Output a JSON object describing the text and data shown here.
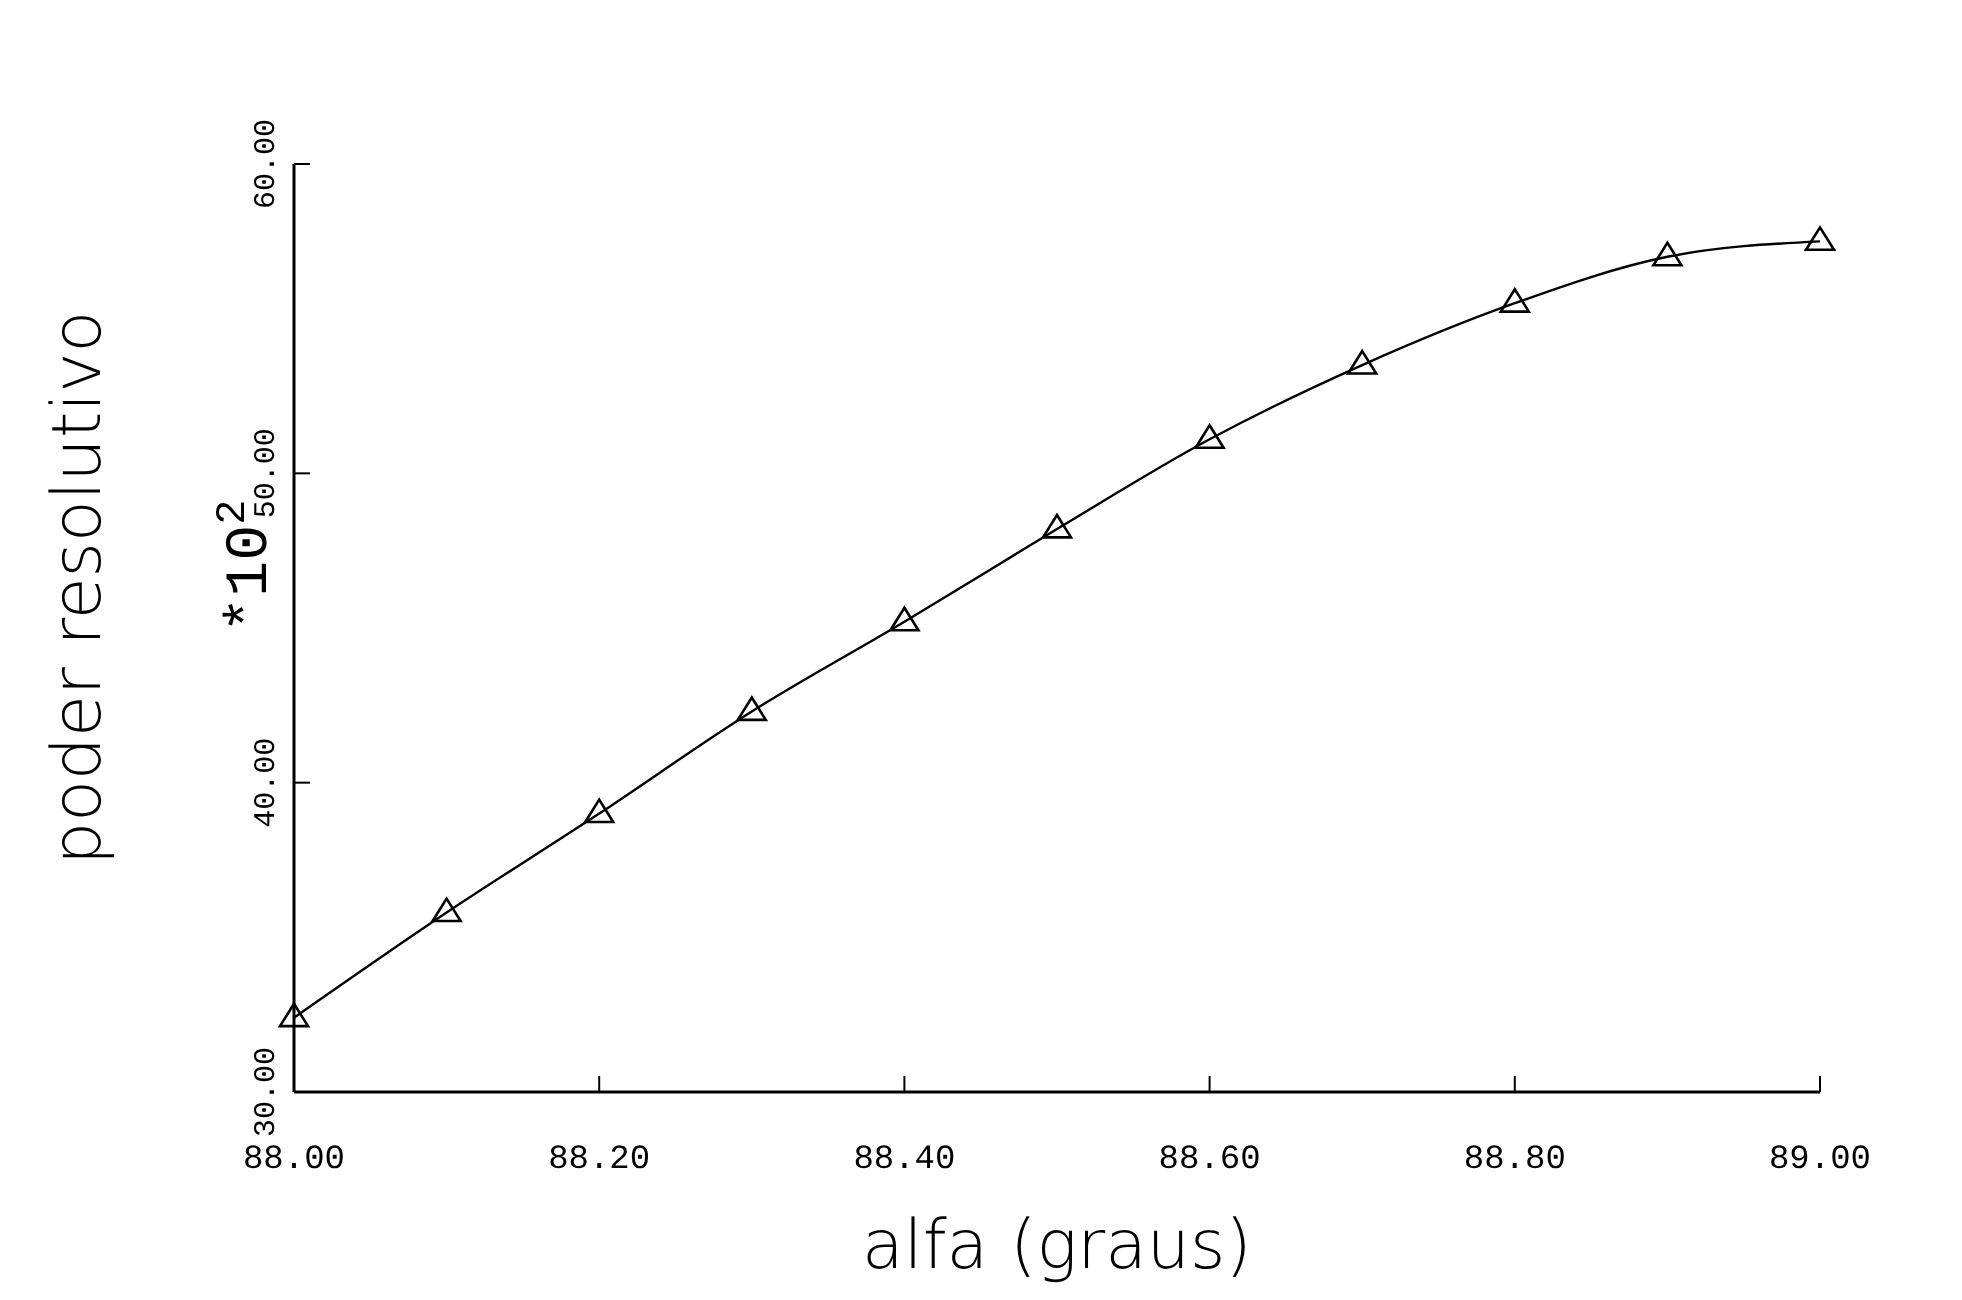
{
  "chart_data": {
    "type": "line",
    "xlabel": "alfa (graus)",
    "ylabel": "poder resolutivo",
    "annotations": [
      "*10$^{2}$"
    ],
    "x": [
      88.0,
      88.1,
      88.2,
      88.3,
      88.4,
      88.5,
      88.6,
      88.7,
      88.8,
      88.9,
      89.0
    ],
    "series": [
      {
        "color": "#000000",
        "values": [
          32.4,
          35.8,
          39.0,
          42.3,
          45.2,
          48.2,
          51.1,
          53.5,
          55.5,
          57.0,
          57.5
        ]
      }
    ],
    "xlim": [
      88.0,
      89.0
    ],
    "xticks": [
      {
        "value": 88.0,
        "label": "88.00"
      },
      {
        "value": 88.2,
        "label": "88.20"
      },
      {
        "value": 88.4,
        "label": "88.40"
      },
      {
        "value": 88.6,
        "label": "88.60"
      },
      {
        "value": 88.8,
        "label": "88.80"
      },
      {
        "value": 89.0,
        "label": "89.00"
      }
    ],
    "ylim": [
      30,
      60
    ],
    "yticks": [
      {
        "value": 30,
        "label": "30.00"
      },
      {
        "value": 40,
        "label": "40.00"
      },
      {
        "value": 50,
        "label": "50.00"
      },
      {
        "value": 60,
        "label": "60.00"
      }
    ],
    "grid": false,
    "marker": "triangle",
    "line_style": "solid"
  }
}
